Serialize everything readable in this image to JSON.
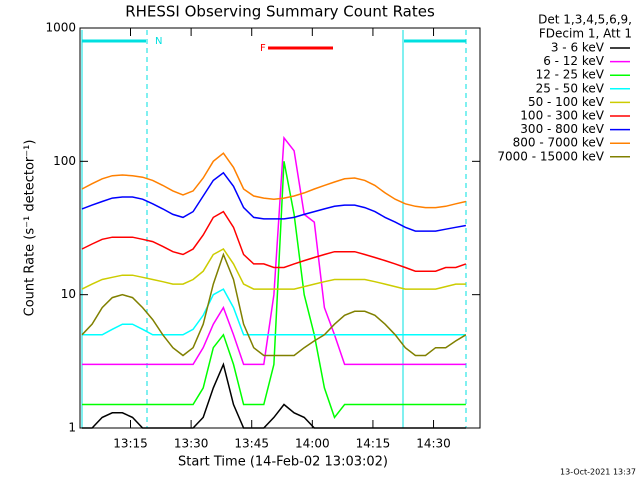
{
  "chart_data": {
    "type": "line",
    "title": "RHESSI Observing Summary Count Rates",
    "x_label": "Start Time (14-Feb-02 13:03:02)",
    "y_label": "Count Rate (s⁻¹ detector⁻¹)",
    "legend_title": [
      "Det 1,3,4,5,6,9,",
      "FDecim 1, Att 1"
    ],
    "legend_position": "outside-right",
    "annotations": [
      "N",
      "F"
    ],
    "timestamp": "13-Oct-2021 13:37",
    "y_scale": "log",
    "xlim": [
      2.5,
      101.5
    ],
    "xticks": [
      {
        "value": 15,
        "label": "13:15"
      },
      {
        "value": 30,
        "label": "13:30"
      },
      {
        "value": 45,
        "label": "13:45"
      },
      {
        "value": 60,
        "label": "14:00"
      },
      {
        "value": 75,
        "label": "14:15"
      },
      {
        "value": 90,
        "label": "14:30"
      }
    ],
    "ylim": [
      1,
      1000
    ],
    "yticks": [
      1,
      10,
      100,
      1000
    ],
    "x": [
      3,
      5.5,
      8,
      10.5,
      13,
      15.5,
      18,
      20.5,
      23,
      25.5,
      28,
      30.5,
      33,
      35.5,
      38,
      40.5,
      43,
      45.5,
      48,
      50.5,
      53,
      55.5,
      58,
      60.5,
      63,
      65.5,
      68,
      70.5,
      73,
      75.5,
      78,
      80.5,
      83,
      85.5,
      88,
      90.5,
      93,
      95.5,
      98
    ],
    "series": [
      {
        "name": "3 - 6 keV",
        "color": "#000000",
        "values": [
          1,
          1,
          1.2,
          1.3,
          1.3,
          1.2,
          1,
          1,
          1,
          1,
          1,
          1,
          1.2,
          2,
          3,
          1.5,
          1,
          1,
          1,
          1.2,
          1.5,
          1.3,
          1.2,
          1,
          1,
          1,
          1,
          1,
          1,
          1,
          1,
          1,
          1,
          1,
          1,
          1,
          1,
          1,
          1
        ]
      },
      {
        "name": "6 - 12 keV",
        "color": "#ff00ff",
        "values": [
          3,
          3,
          3,
          3,
          3,
          3,
          3,
          3,
          3,
          3,
          3,
          3,
          4,
          6,
          8,
          5,
          3,
          3,
          3,
          10,
          150,
          120,
          40,
          35,
          8,
          5,
          3,
          3,
          3,
          3,
          3,
          3,
          3,
          3,
          3,
          3,
          3,
          3,
          3
        ]
      },
      {
        "name": "12 - 25 keV",
        "color": "#00ff00",
        "values": [
          1.5,
          1.5,
          1.5,
          1.5,
          1.5,
          1.5,
          1.5,
          1.5,
          1.5,
          1.5,
          1.5,
          1.5,
          2,
          4,
          5,
          3,
          1.5,
          1.5,
          1.5,
          3,
          100,
          40,
          10,
          5,
          2,
          1.2,
          1.5,
          1.5,
          1.5,
          1.5,
          1.5,
          1.5,
          1.5,
          1.5,
          1.5,
          1.5,
          1.5,
          1.5,
          1.5
        ]
      },
      {
        "name": "25 - 50 keV",
        "color": "#00ffff",
        "values": [
          5,
          5,
          5,
          5.5,
          6,
          6,
          5.5,
          5,
          5,
          5,
          5,
          5.5,
          7,
          10,
          11,
          8,
          5,
          5,
          5,
          5,
          5,
          5,
          5,
          5,
          5,
          5,
          5,
          5,
          5,
          5,
          5,
          5,
          5,
          5,
          5,
          5,
          5,
          5,
          5
        ]
      },
      {
        "name": "50 - 100 keV",
        "color": "#cccc00",
        "values": [
          11,
          12,
          13,
          13.5,
          14,
          14,
          13.5,
          13,
          12.5,
          12,
          12,
          13,
          15,
          20,
          22,
          17,
          12,
          11,
          11,
          11,
          11,
          11,
          11.5,
          12,
          12.5,
          13,
          13,
          13,
          13,
          12.5,
          12,
          11.5,
          11,
          11,
          11,
          11,
          11.5,
          12,
          12
        ]
      },
      {
        "name": "100 - 300 keV",
        "color": "#ff0000",
        "values": [
          22,
          24,
          26,
          27,
          27,
          27,
          26,
          25,
          23,
          21,
          20,
          22,
          28,
          38,
          42,
          32,
          20,
          17,
          17,
          16,
          16,
          17,
          18,
          19,
          20,
          21,
          21,
          21,
          20,
          19,
          18,
          17,
          16,
          15,
          15,
          15,
          16,
          16,
          17
        ]
      },
      {
        "name": "300 - 800 keV",
        "color": "#0000ff",
        "values": [
          44,
          47,
          50,
          53,
          54,
          54,
          52,
          48,
          44,
          40,
          38,
          42,
          55,
          72,
          82,
          65,
          45,
          38,
          37,
          37,
          37,
          38,
          40,
          42,
          44,
          46,
          47,
          47,
          45,
          42,
          38,
          35,
          32,
          30,
          30,
          30,
          31,
          32,
          33
        ]
      },
      {
        "name": "800 - 7000 keV",
        "color": "#ff8000",
        "values": [
          62,
          68,
          74,
          78,
          79,
          78,
          76,
          72,
          66,
          60,
          56,
          60,
          75,
          100,
          115,
          90,
          62,
          55,
          53,
          52,
          53,
          55,
          58,
          62,
          66,
          70,
          74,
          75,
          72,
          66,
          58,
          52,
          48,
          46,
          45,
          45,
          46,
          48,
          50
        ]
      },
      {
        "name": "7000 - 15000 keV",
        "color": "#808000",
        "values": [
          5,
          6,
          8,
          9.5,
          10,
          9.5,
          8,
          6.5,
          5,
          4,
          3.5,
          4,
          6,
          12,
          20,
          13,
          6,
          4,
          3.5,
          3.5,
          3.5,
          3.5,
          4,
          4.5,
          5,
          6,
          7,
          7.5,
          7.5,
          7,
          6,
          5,
          4,
          3.5,
          3.5,
          4,
          4,
          4.5,
          5
        ]
      }
    ]
  }
}
